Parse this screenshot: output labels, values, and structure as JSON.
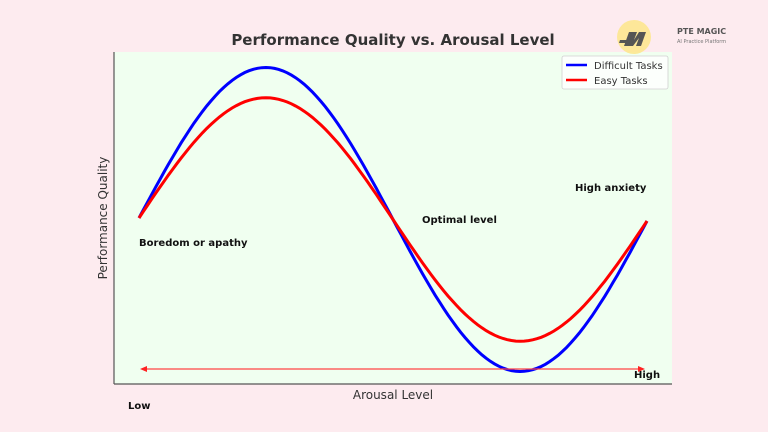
{
  "chart_data": {
    "type": "line",
    "title": "Performance Quality vs. Arousal Level",
    "xlabel": "Arousal Level",
    "ylabel": "Performance Quality",
    "x_range": [
      0,
      6.283
    ],
    "ylim": [
      -1.35,
      1.35
    ],
    "grid": false,
    "legend_position": "upper right",
    "x": [
      0,
      0.785,
      1.571,
      2.356,
      3.142,
      3.927,
      4.712,
      5.498,
      6.283
    ],
    "series": [
      {
        "name": "Difficult Tasks",
        "color": "#0000ff",
        "amplitude": 1.25,
        "values": [
          0,
          0.88,
          1.25,
          0.88,
          0,
          -0.88,
          -1.25,
          -0.88,
          -0.02
        ]
      },
      {
        "name": "Easy Tasks",
        "color": "#ff0000",
        "amplitude": 1.0,
        "values": [
          0,
          0.71,
          1.0,
          0.71,
          0,
          -0.71,
          -1.0,
          -0.71,
          -0.02
        ]
      }
    ],
    "annotations": [
      {
        "text": "Boredom or apathy"
      },
      {
        "text": "Optimal level"
      },
      {
        "text": "High anxiety"
      },
      {
        "text": "Low"
      },
      {
        "text": "High"
      }
    ],
    "arrow": {
      "from": "High",
      "to": "Low",
      "color": "#ff4444",
      "style": "double-ended"
    }
  },
  "logo": {
    "brand": "PTE MAGIC",
    "tagline": "AI Practice Platform",
    "badge_color": "#fde68a"
  },
  "colors": {
    "page_bg": "#fdebef",
    "plot_bg": "#f0fff0"
  }
}
